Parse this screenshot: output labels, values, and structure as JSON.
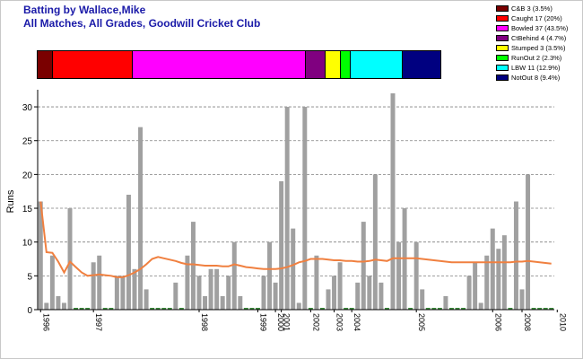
{
  "header": {
    "title": "Batting by Wallace,Mike",
    "subtitle": "All Matches, All Grades, Goodwill Cricket Club"
  },
  "legend": [
    {
      "label": "C&B 3 (3.5%)",
      "color": "#7a0000",
      "count": 3
    },
    {
      "label": "Caught 17 (20%)",
      "color": "#ff0000",
      "count": 17
    },
    {
      "label": "Bowled 37 (43.5%)",
      "color": "#ff00ff",
      "count": 37
    },
    {
      "label": "CtBehind 4 (4.7%)",
      "color": "#800080",
      "count": 4
    },
    {
      "label": "Stumped 3 (3.5%)",
      "color": "#ffff00",
      "count": 3
    },
    {
      "label": "RunOut 2 (2.3%)",
      "color": "#00ff00",
      "count": 2
    },
    {
      "label": "LBW 11 (12.9%)",
      "color": "#00ffff",
      "count": 11
    },
    {
      "label": "NotOut 8 (9.4%)",
      "color": "#000080",
      "count": 8
    }
  ],
  "chart_data": {
    "type": "bar",
    "ylabel": "Runs",
    "ylim": [
      0,
      32
    ],
    "yticks": [
      0,
      5,
      10,
      15,
      20,
      25,
      30
    ],
    "grid": true,
    "bar_color": "#a0a0a0",
    "avg_color": "#f08040",
    "zero_color": "#3a8a3a",
    "values": [
      16,
      1,
      8,
      2,
      1,
      15,
      0,
      0,
      0,
      7,
      8,
      0,
      0,
      5,
      5,
      17,
      6,
      27,
      3,
      0,
      0,
      0,
      0,
      4,
      0,
      8,
      13,
      5,
      2,
      6,
      6,
      2,
      5,
      10,
      2,
      0,
      0,
      0,
      5,
      10,
      4,
      19,
      30,
      12,
      1,
      30,
      0,
      8,
      0,
      3,
      5,
      7,
      0,
      0,
      4,
      13,
      5,
      20,
      4,
      0,
      32,
      10,
      15,
      0,
      10,
      3,
      0,
      0,
      0,
      2,
      0,
      0,
      0,
      5,
      7,
      1,
      8,
      12,
      9,
      11,
      0,
      16,
      3,
      20,
      0,
      0,
      0,
      0
    ],
    "average": [
      16,
      8.5,
      8.4,
      7.1,
      5.5,
      7.1,
      6.3,
      5.5,
      5,
      5.1,
      5.2,
      5.1,
      5,
      4.8,
      4.8,
      5.1,
      5.5,
      6,
      6.7,
      7.5,
      7.8,
      7.6,
      7.4,
      7.2,
      6.9,
      6.7,
      6.7,
      6.6,
      6.5,
      6.5,
      6.5,
      6.4,
      6.4,
      6.7,
      6.5,
      6.3,
      6.2,
      6.1,
      6,
      6,
      6,
      6.1,
      6.3,
      6.6,
      7,
      7.2,
      7.5,
      7.5,
      7.5,
      7.4,
      7.3,
      7.3,
      7.2,
      7.2,
      7.1,
      7.1,
      7.2,
      7.4,
      7.3,
      7.2,
      7.6,
      7.6,
      7.6,
      7.6,
      7.6,
      7.5,
      7.4,
      7.3,
      7.2,
      7.1,
      7,
      7,
      7,
      7,
      7,
      7,
      7,
      7,
      7,
      7,
      7,
      7.1,
      7.1,
      7.2,
      7.1,
      7,
      6.9,
      6.8
    ],
    "x_tick_labels": [
      {
        "label": "1996",
        "index": 0
      },
      {
        "label": "1997",
        "index": 9
      },
      {
        "label": "1998",
        "index": 27
      },
      {
        "label": "1999",
        "index": 37
      },
      {
        "label": "2000",
        "index": 40
      },
      {
        "label": "2001",
        "index": 41
      },
      {
        "label": "2002",
        "index": 46
      },
      {
        "label": "2003",
        "index": 50
      },
      {
        "label": "2004",
        "index": 53
      },
      {
        "label": "2005",
        "index": 64
      },
      {
        "label": "2006",
        "index": 77
      },
      {
        "label": "2008",
        "index": 82
      },
      {
        "label": "2010",
        "index": 88
      }
    ]
  }
}
